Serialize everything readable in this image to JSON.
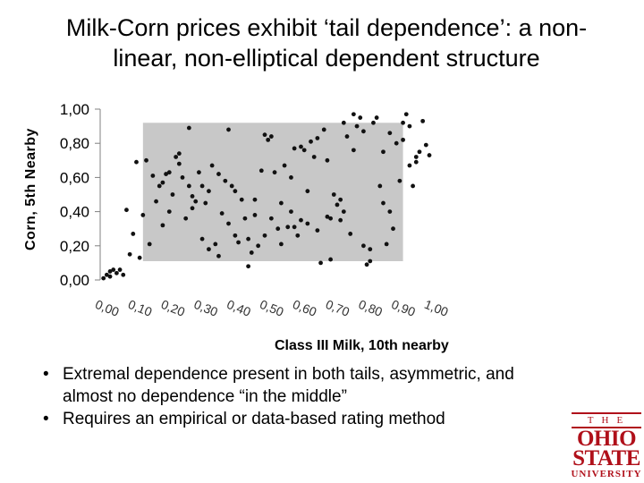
{
  "title_lines": [
    "Milk-Corn prices exhibit ‘tail dependence’: a non-",
    "linear, non-elliptical dependent structure"
  ],
  "chart_data": {
    "type": "scatter",
    "ylabel": "Corn, 5th Nearby",
    "xlabel": "Class III Milk, 10th nearby",
    "x_ticks": [
      "0,00",
      "0,10",
      "0,20",
      "0,30",
      "0,40",
      "0,50",
      "0,60",
      "0,70",
      "0,80",
      "0,90",
      "1,00"
    ],
    "y_ticks": [
      "0,00",
      "0,20",
      "0,40",
      "0,60",
      "0,80",
      "1,00"
    ],
    "xlim": [
      0,
      1
    ],
    "ylim": [
      0,
      1
    ],
    "grid": false,
    "shaded_region": {
      "x": [
        0.13,
        0.92
      ],
      "y": [
        0.11,
        0.92
      ],
      "color": "#c8c8c8"
    },
    "marker_color": "#111111",
    "points": [
      [
        0.01,
        0.01
      ],
      [
        0.02,
        0.03
      ],
      [
        0.03,
        0.05
      ],
      [
        0.04,
        0.06
      ],
      [
        0.05,
        0.04
      ],
      [
        0.06,
        0.06
      ],
      [
        0.03,
        0.02
      ],
      [
        0.07,
        0.03
      ],
      [
        0.08,
        0.41
      ],
      [
        0.09,
        0.15
      ],
      [
        0.1,
        0.27
      ],
      [
        0.11,
        0.69
      ],
      [
        0.12,
        0.13
      ],
      [
        0.13,
        0.38
      ],
      [
        0.14,
        0.7
      ],
      [
        0.15,
        0.21
      ],
      [
        0.16,
        0.61
      ],
      [
        0.17,
        0.46
      ],
      [
        0.18,
        0.55
      ],
      [
        0.19,
        0.57
      ],
      [
        0.2,
        0.62
      ],
      [
        0.21,
        0.63
      ],
      [
        0.22,
        0.5
      ],
      [
        0.23,
        0.72
      ],
      [
        0.24,
        0.68
      ],
      [
        0.25,
        0.6
      ],
      [
        0.26,
        0.36
      ],
      [
        0.27,
        0.89
      ],
      [
        0.28,
        0.42
      ],
      [
        0.29,
        0.46
      ],
      [
        0.3,
        0.63
      ],
      [
        0.31,
        0.55
      ],
      [
        0.32,
        0.45
      ],
      [
        0.33,
        0.18
      ],
      [
        0.34,
        0.67
      ],
      [
        0.35,
        0.21
      ],
      [
        0.36,
        0.14
      ],
      [
        0.37,
        0.39
      ],
      [
        0.38,
        0.58
      ],
      [
        0.39,
        0.88
      ],
      [
        0.4,
        0.55
      ],
      [
        0.41,
        0.26
      ],
      [
        0.42,
        0.22
      ],
      [
        0.43,
        0.47
      ],
      [
        0.44,
        0.36
      ],
      [
        0.45,
        0.08
      ],
      [
        0.46,
        0.16
      ],
      [
        0.47,
        0.38
      ],
      [
        0.48,
        0.2
      ],
      [
        0.49,
        0.64
      ],
      [
        0.5,
        0.85
      ],
      [
        0.51,
        0.82
      ],
      [
        0.52,
        0.84
      ],
      [
        0.53,
        0.63
      ],
      [
        0.54,
        0.3
      ],
      [
        0.55,
        0.21
      ],
      [
        0.56,
        0.67
      ],
      [
        0.57,
        0.31
      ],
      [
        0.58,
        0.4
      ],
      [
        0.59,
        0.77
      ],
      [
        0.6,
        0.26
      ],
      [
        0.61,
        0.35
      ],
      [
        0.62,
        0.76
      ],
      [
        0.63,
        0.33
      ],
      [
        0.64,
        0.81
      ],
      [
        0.65,
        0.72
      ],
      [
        0.66,
        0.83
      ],
      [
        0.67,
        0.1
      ],
      [
        0.68,
        0.88
      ],
      [
        0.69,
        0.37
      ],
      [
        0.7,
        0.36
      ],
      [
        0.71,
        0.5
      ],
      [
        0.72,
        0.44
      ],
      [
        0.73,
        0.35
      ],
      [
        0.74,
        0.92
      ],
      [
        0.75,
        0.84
      ],
      [
        0.76,
        0.27
      ],
      [
        0.77,
        0.97
      ],
      [
        0.78,
        0.9
      ],
      [
        0.79,
        0.95
      ],
      [
        0.8,
        0.87
      ],
      [
        0.81,
        0.09
      ],
      [
        0.82,
        0.11
      ],
      [
        0.83,
        0.92
      ],
      [
        0.84,
        0.95
      ],
      [
        0.85,
        0.55
      ],
      [
        0.86,
        0.75
      ],
      [
        0.87,
        0.21
      ],
      [
        0.88,
        0.4
      ],
      [
        0.89,
        0.3
      ],
      [
        0.9,
        0.8
      ],
      [
        0.91,
        0.58
      ],
      [
        0.92,
        0.92
      ],
      [
        0.93,
        0.97
      ],
      [
        0.94,
        0.67
      ],
      [
        0.95,
        0.55
      ],
      [
        0.96,
        0.72
      ],
      [
        0.97,
        0.75
      ],
      [
        0.98,
        0.93
      ],
      [
        0.99,
        0.79
      ],
      [
        1.0,
        0.73
      ],
      [
        0.66,
        0.29
      ],
      [
        0.59,
        0.31
      ],
      [
        0.73,
        0.47
      ],
      [
        0.52,
        0.36
      ],
      [
        0.45,
        0.24
      ],
      [
        0.28,
        0.49
      ],
      [
        0.31,
        0.24
      ],
      [
        0.41,
        0.52
      ],
      [
        0.88,
        0.86
      ],
      [
        0.82,
        0.18
      ],
      [
        0.69,
        0.7
      ],
      [
        0.61,
        0.78
      ],
      [
        0.77,
        0.76
      ],
      [
        0.55,
        0.45
      ],
      [
        0.19,
        0.32
      ],
      [
        0.24,
        0.74
      ],
      [
        0.36,
        0.62
      ],
      [
        0.47,
        0.47
      ],
      [
        0.92,
        0.82
      ],
      [
        0.96,
        0.69
      ],
      [
        0.86,
        0.45
      ],
      [
        0.74,
        0.4
      ],
      [
        0.63,
        0.52
      ],
      [
        0.5,
        0.26
      ],
      [
        0.39,
        0.33
      ],
      [
        0.27,
        0.55
      ],
      [
        0.7,
        0.12
      ],
      [
        0.8,
        0.2
      ],
      [
        0.94,
        0.9
      ],
      [
        0.58,
        0.6
      ],
      [
        0.33,
        0.52
      ],
      [
        0.21,
        0.4
      ]
    ]
  },
  "bullets": [
    {
      "line1": "Extremal dependence present in both tails, asymmetric, and",
      "line2": "almost no dependence “in the middle”"
    },
    {
      "line1": "Requires an empirical or data-based rating method",
      "line2": ""
    }
  ],
  "logo": {
    "the": "THE",
    "line1": "OHIO",
    "line2": "STATE",
    "line3": "UNIVERSITY"
  }
}
